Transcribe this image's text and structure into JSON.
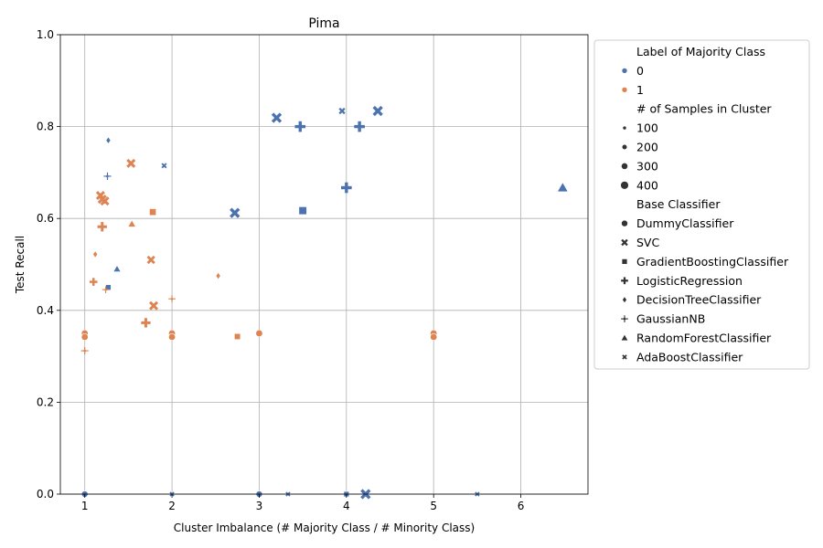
{
  "chart_data": {
    "type": "scatter",
    "title": "Pima",
    "xlabel": "Cluster Imbalance (# Majority Class / # Minority Class)",
    "ylabel": "Test Recall",
    "xlim": [
      0.72,
      6.77
    ],
    "ylim": [
      0,
      1.0
    ],
    "x_ticks": [
      1,
      2,
      3,
      4,
      5,
      6
    ],
    "y_ticks": [
      0.0,
      0.2,
      0.4,
      0.6,
      0.8,
      1.0
    ],
    "x_tick_labels": [
      "1",
      "2",
      "3",
      "4",
      "5",
      "6"
    ],
    "y_tick_labels": [
      "0.0",
      "0.2",
      "0.4",
      "0.6",
      "0.8",
      "1.0"
    ],
    "grid": true,
    "legend_position": "outside-right",
    "colors": {
      "0": "#4c72b0",
      "1": "#dd8452",
      "grid": "#b0b0b0"
    },
    "legend": {
      "hue_title": "Label of Majority Class",
      "hue_entries": [
        "0",
        "1"
      ],
      "size_title": "# of Samples in Cluster",
      "size_entries": [
        "100",
        "200",
        "300",
        "400"
      ],
      "size_values": [
        100,
        200,
        300,
        400
      ],
      "style_title": "Base Classifier",
      "style_entries": [
        "DummyClassifier",
        "SVC",
        "GradientBoostingClassifier",
        "LogisticRegression",
        "DecisionTreeClassifier",
        "GaussianNB",
        "RandomForestClassifier",
        "AdaBoostClassifier"
      ],
      "style_markers": [
        "circle",
        "x",
        "square",
        "plus",
        "diamond",
        "star",
        "triangle",
        "smallx"
      ]
    },
    "points": [
      {
        "x": 1.0,
        "y": 0.0,
        "label": "0",
        "clf": "DummyClassifier",
        "n": 60
      },
      {
        "x": 2.0,
        "y": 0.0,
        "label": "0",
        "clf": "AdaBoostClassifier",
        "n": 60
      },
      {
        "x": 3.0,
        "y": 0.0,
        "label": "0",
        "clf": "DummyClassifier",
        "n": 60
      },
      {
        "x": 3.33,
        "y": 0.0,
        "label": "0",
        "clf": "AdaBoostClassifier",
        "n": 60
      },
      {
        "x": 4.0,
        "y": 0.0,
        "label": "0",
        "clf": "GradientBoostingClassifier",
        "n": 60
      },
      {
        "x": 4.22,
        "y": 0.0,
        "label": "0",
        "clf": "SVC",
        "n": 300
      },
      {
        "x": 5.5,
        "y": 0.0,
        "label": "0",
        "clf": "AdaBoostClassifier",
        "n": 60
      },
      {
        "x": 1.27,
        "y": 0.77,
        "label": "0",
        "clf": "DecisionTreeClassifier",
        "n": 80
      },
      {
        "x": 1.26,
        "y": 0.692,
        "label": "0",
        "clf": "GaussianNB",
        "n": 80
      },
      {
        "x": 1.91,
        "y": 0.715,
        "label": "0",
        "clf": "AdaBoostClassifier",
        "n": 100
      },
      {
        "x": 1.37,
        "y": 0.49,
        "label": "0",
        "clf": "RandomForestClassifier",
        "n": 80
      },
      {
        "x": 1.27,
        "y": 0.45,
        "label": "0",
        "clf": "GradientBoostingClassifier",
        "n": 60
      },
      {
        "x": 2.72,
        "y": 0.612,
        "label": "0",
        "clf": "SVC",
        "n": 300
      },
      {
        "x": 3.2,
        "y": 0.819,
        "label": "0",
        "clf": "SVC",
        "n": 300
      },
      {
        "x": 3.47,
        "y": 0.8,
        "label": "0",
        "clf": "LogisticRegression",
        "n": 300
      },
      {
        "x": 3.5,
        "y": 0.617,
        "label": "0",
        "clf": "GradientBoostingClassifier",
        "n": 260
      },
      {
        "x": 3.95,
        "y": 0.834,
        "label": "0",
        "clf": "AdaBoostClassifier",
        "n": 200
      },
      {
        "x": 4.0,
        "y": 0.667,
        "label": "0",
        "clf": "LogisticRegression",
        "n": 300
      },
      {
        "x": 4.15,
        "y": 0.8,
        "label": "0",
        "clf": "LogisticRegression",
        "n": 300
      },
      {
        "x": 4.36,
        "y": 0.834,
        "label": "0",
        "clf": "SVC",
        "n": 300
      },
      {
        "x": 6.48,
        "y": 0.667,
        "label": "0",
        "clf": "RandomForestClassifier",
        "n": 300
      },
      {
        "x": 1.0,
        "y": 0.35,
        "label": "1",
        "clf": "DummyClassifier",
        "n": 80
      },
      {
        "x": 1.0,
        "y": 0.342,
        "label": "1",
        "clf": "DummyClassifier",
        "n": 80
      },
      {
        "x": 1.0,
        "y": 0.312,
        "label": "1",
        "clf": "GaussianNB",
        "n": 80
      },
      {
        "x": 1.1,
        "y": 0.462,
        "label": "1",
        "clf": "LogisticRegression",
        "n": 100
      },
      {
        "x": 1.12,
        "y": 0.522,
        "label": "1",
        "clf": "DecisionTreeClassifier",
        "n": 80
      },
      {
        "x": 1.18,
        "y": 0.65,
        "label": "1",
        "clf": "SVC",
        "n": 200
      },
      {
        "x": 1.2,
        "y": 0.642,
        "label": "1",
        "clf": "SVC",
        "n": 200
      },
      {
        "x": 1.23,
        "y": 0.638,
        "label": "1",
        "clf": "SVC",
        "n": 200
      },
      {
        "x": 1.2,
        "y": 0.582,
        "label": "1",
        "clf": "LogisticRegression",
        "n": 200
      },
      {
        "x": 1.24,
        "y": 0.445,
        "label": "1",
        "clf": "GaussianNB",
        "n": 60
      },
      {
        "x": 1.53,
        "y": 0.72,
        "label": "1",
        "clf": "SVC",
        "n": 200
      },
      {
        "x": 1.54,
        "y": 0.588,
        "label": "1",
        "clf": "RandomForestClassifier",
        "n": 100
      },
      {
        "x": 1.7,
        "y": 0.373,
        "label": "1",
        "clf": "LogisticRegression",
        "n": 200
      },
      {
        "x": 1.76,
        "y": 0.51,
        "label": "1",
        "clf": "SVC",
        "n": 150
      },
      {
        "x": 1.78,
        "y": 0.614,
        "label": "1",
        "clf": "GradientBoostingClassifier",
        "n": 150
      },
      {
        "x": 1.79,
        "y": 0.41,
        "label": "1",
        "clf": "SVC",
        "n": 200
      },
      {
        "x": 2.0,
        "y": 0.425,
        "label": "1",
        "clf": "GaussianNB",
        "n": 60
      },
      {
        "x": 2.0,
        "y": 0.35,
        "label": "1",
        "clf": "DummyClassifier",
        "n": 80
      },
      {
        "x": 2.0,
        "y": 0.342,
        "label": "1",
        "clf": "DummyClassifier",
        "n": 80
      },
      {
        "x": 2.53,
        "y": 0.475,
        "label": "1",
        "clf": "DecisionTreeClassifier",
        "n": 80
      },
      {
        "x": 2.75,
        "y": 0.343,
        "label": "1",
        "clf": "GradientBoostingClassifier",
        "n": 100
      },
      {
        "x": 3.0,
        "y": 0.35,
        "label": "1",
        "clf": "DummyClassifier",
        "n": 80
      },
      {
        "x": 5.0,
        "y": 0.35,
        "label": "1",
        "clf": "DummyClassifier",
        "n": 80
      },
      {
        "x": 5.0,
        "y": 0.342,
        "label": "1",
        "clf": "DummyClassifier",
        "n": 80
      }
    ]
  }
}
